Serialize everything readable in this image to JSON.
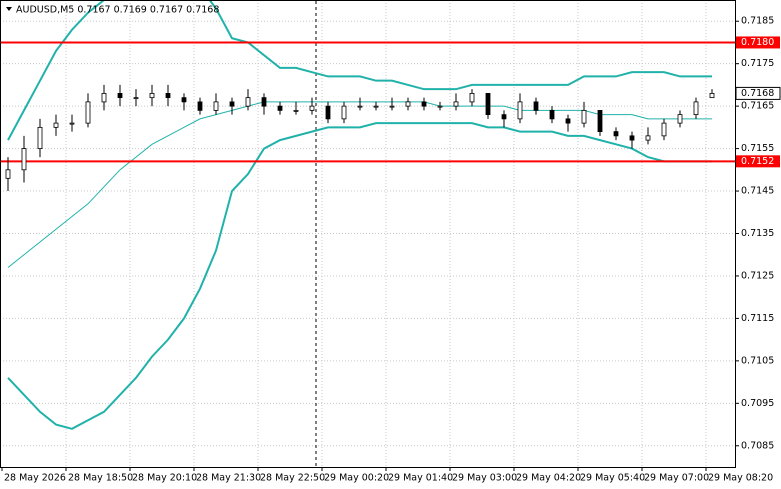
{
  "chart_data": {
    "type": "candlestick",
    "title": "AUDUSD,M5  0.7167 0.7169 0.7167 0.7168",
    "categories": [
      "28 May 2026",
      null,
      null,
      null,
      "28 May 18:50",
      null,
      null,
      null,
      "28 May 20:10",
      null,
      null,
      null,
      "28 May 21:30",
      null,
      null,
      null,
      "28 May 22:50",
      null,
      null,
      null,
      "29 May 00:20",
      null,
      null,
      null,
      "29 May 01:40",
      null,
      null,
      null,
      "29 May 03:00",
      null,
      null,
      null,
      "29 May 04:20",
      null,
      null,
      null,
      "29 May 05:40",
      null,
      null,
      null,
      "29 May 07:00",
      null,
      null,
      null,
      "29 May 08:20"
    ],
    "open": [
      0.7148,
      0.715,
      0.7155,
      0.716,
      0.7161,
      0.7161,
      0.7166,
      0.7168,
      0.7167,
      0.7167,
      0.7168,
      0.7167,
      0.7166,
      0.7164,
      0.7166,
      0.7165,
      0.7167,
      0.7165,
      0.7164,
      0.7164,
      0.7165,
      0.7162,
      0.7165,
      0.7165,
      0.7165,
      0.7165,
      0.7166,
      0.7165,
      0.7165,
      0.7166,
      0.7168,
      0.7163,
      0.7162,
      0.7166,
      0.7164,
      0.7162,
      0.7161,
      0.7164,
      0.7159,
      0.7158,
      0.7157,
      0.7158,
      0.7161,
      0.7163,
      0.7167
    ],
    "high": [
      0.7153,
      0.7158,
      0.7162,
      0.7163,
      0.7163,
      0.7168,
      0.717,
      0.717,
      0.7169,
      0.717,
      0.717,
      0.7168,
      0.7167,
      0.7168,
      0.7167,
      0.7169,
      0.7168,
      0.7166,
      0.7166,
      0.7167,
      0.7166,
      0.7166,
      0.7167,
      0.7166,
      0.7167,
      0.7167,
      0.7167,
      0.7166,
      0.7168,
      0.7169,
      0.7168,
      0.7164,
      0.7168,
      0.7167,
      0.7165,
      0.7163,
      0.7166,
      0.7164,
      0.716,
      0.7159,
      0.716,
      0.7162,
      0.7164,
      0.7167,
      0.7169
    ],
    "low": [
      0.7145,
      0.7147,
      0.7153,
      0.7158,
      0.7159,
      0.716,
      0.7164,
      0.7165,
      0.7165,
      0.7165,
      0.7165,
      0.7164,
      0.7163,
      0.7163,
      0.7163,
      0.7164,
      0.7163,
      0.7163,
      0.7163,
      0.7163,
      0.7161,
      0.7161,
      0.7164,
      0.7164,
      0.7164,
      0.7164,
      0.7164,
      0.7164,
      0.7164,
      0.7165,
      0.7162,
      0.716,
      0.7161,
      0.7163,
      0.7161,
      0.7159,
      0.716,
      0.7158,
      0.7157,
      0.7155,
      0.7156,
      0.7157,
      0.716,
      0.7162,
      0.7167
    ],
    "close": [
      0.715,
      0.7155,
      0.716,
      0.7161,
      0.7161,
      0.7166,
      0.7168,
      0.7167,
      0.7167,
      0.7168,
      0.7167,
      0.7166,
      0.7164,
      0.7166,
      0.7165,
      0.7167,
      0.7165,
      0.7164,
      0.7164,
      0.7165,
      0.7162,
      0.7165,
      0.7165,
      0.7165,
      0.7165,
      0.7166,
      0.7165,
      0.7165,
      0.7166,
      0.7168,
      0.7163,
      0.7162,
      0.7166,
      0.7164,
      0.7162,
      0.7161,
      0.7164,
      0.7159,
      0.7158,
      0.7157,
      0.7158,
      0.7161,
      0.7163,
      0.7166,
      0.7168
    ],
    "candle_color": "#000000",
    "bands": {
      "color": "#20b2aa",
      "series": [
        {
          "values": [
            0.7157,
            0.7164,
            0.7171,
            0.7178,
            0.7183,
            0.7187,
            0.719,
            0.7194,
            0.7197,
            0.7199,
            0.7199,
            0.7197,
            0.7193,
            0.7188,
            0.7181,
            0.718,
            0.7177,
            0.7174,
            0.7174,
            0.7173,
            0.7172,
            0.7172,
            0.7172,
            0.7171,
            0.7171,
            0.717,
            0.7169,
            0.7169,
            0.7169,
            0.717,
            0.717,
            0.717,
            0.717,
            0.717,
            0.717,
            0.717,
            0.7172,
            0.7172,
            0.7172,
            0.7173,
            0.7173,
            0.7173,
            0.7172,
            0.7172,
            0.7172
          ]
        },
        {
          "values": [
            0.7127,
            0.713,
            0.7133,
            0.7136,
            0.7139,
            0.7142,
            0.7146,
            0.715,
            0.7153,
            0.7156,
            0.7158,
            0.716,
            0.7162,
            0.7163,
            0.7164,
            0.7165,
            0.7166,
            0.7166,
            0.7166,
            0.7166,
            0.7166,
            0.7166,
            0.7166,
            0.7166,
            0.7166,
            0.7166,
            0.7166,
            0.7165,
            0.7165,
            0.7165,
            0.7165,
            0.7165,
            0.7164,
            0.7164,
            0.7164,
            0.7164,
            0.7164,
            0.7163,
            0.7163,
            0.7163,
            0.7162,
            0.7162,
            0.7162,
            0.7162,
            0.7162
          ],
          "width": 1
        },
        {
          "values": [
            0.7101,
            0.7097,
            0.7093,
            0.709,
            0.7089,
            0.7091,
            0.7093,
            0.7097,
            0.7101,
            0.7106,
            0.711,
            0.7115,
            0.7122,
            0.7131,
            0.7145,
            0.7149,
            0.7155,
            0.7157,
            0.7158,
            0.7159,
            0.716,
            0.716,
            0.716,
            0.7161,
            0.7161,
            0.7161,
            0.7161,
            0.7161,
            0.7161,
            0.7161,
            0.716,
            0.716,
            0.7159,
            0.7159,
            0.7159,
            0.7158,
            0.7158,
            0.7157,
            0.7156,
            0.7155,
            0.7153,
            0.7152,
            0.7152,
            0.7152,
            0.7152
          ]
        }
      ]
    },
    "levels": [
      {
        "value": 0.718,
        "label": "0.7180"
      },
      {
        "value": 0.7152,
        "label": "0.7152"
      }
    ],
    "level_color": "#ff0000",
    "last_price": {
      "value": 0.7168,
      "label": "0.7168"
    },
    "ylim": [
      0.708,
      0.719
    ],
    "yticks": [
      0.7085,
      0.7095,
      0.7105,
      0.7115,
      0.7125,
      0.7135,
      0.7145,
      0.7155,
      0.7165,
      0.7175,
      0.7185
    ],
    "grid": true
  }
}
